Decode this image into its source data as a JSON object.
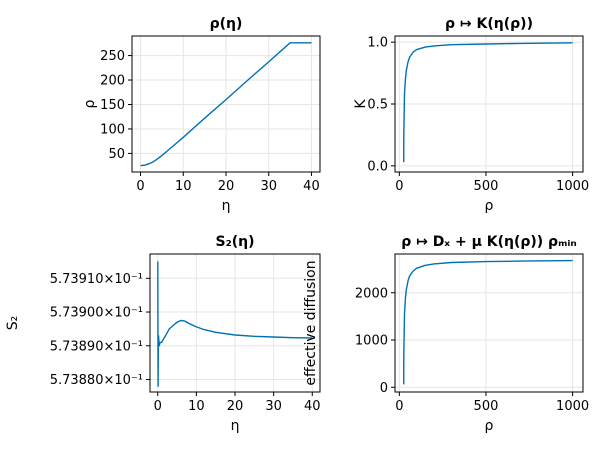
{
  "colors": {
    "series": "#0072b2",
    "grid": "#e6e6e6",
    "frame": "#000000"
  },
  "chart_data": [
    {
      "type": "line",
      "title": "ρ(η)",
      "xlabel": "η",
      "ylabel": "ρ",
      "xlim": [
        -2,
        42
      ],
      "ylim": [
        12,
        290
      ],
      "xticks": [
        {
          "value": 0,
          "label": "0"
        },
        {
          "value": 10,
          "label": "10"
        },
        {
          "value": 20,
          "label": "20"
        },
        {
          "value": 30,
          "label": "30"
        },
        {
          "value": 40,
          "label": "40"
        }
      ],
      "yticks": [
        {
          "value": 50,
          "label": "50"
        },
        {
          "value": 100,
          "label": "100"
        },
        {
          "value": 150,
          "label": "150"
        },
        {
          "value": 200,
          "label": "200"
        },
        {
          "value": 250,
          "label": "250"
        }
      ],
      "grid": true,
      "series": [
        {
          "x": [
            0,
            1,
            2,
            3,
            4,
            5,
            6,
            8,
            10,
            15,
            20,
            25,
            30,
            35,
            40
          ],
          "y": [
            25,
            26,
            29,
            33,
            39,
            46,
            53,
            68,
            83,
            122,
            160,
            199,
            237,
            276,
            276
          ]
        }
      ]
    },
    {
      "type": "line",
      "title": "ρ ↦ K(η(ρ))",
      "xlabel": "ρ",
      "ylabel": "K",
      "xlim": [
        -25,
        1060
      ],
      "ylim": [
        -0.05,
        1.05
      ],
      "xticks": [
        {
          "value": 0,
          "label": "0"
        },
        {
          "value": 500,
          "label": "500"
        },
        {
          "value": 1000,
          "label": "1000"
        }
      ],
      "yticks": [
        {
          "value": 0,
          "label": "0.0"
        },
        {
          "value": 0.5,
          "label": "0.5"
        },
        {
          "value": 1,
          "label": "1.0"
        }
      ],
      "grid": true,
      "series": [
        {
          "x": [
            25,
            26,
            28,
            30,
            35,
            40,
            50,
            60,
            80,
            100,
            150,
            200,
            300,
            500,
            700,
            1000
          ],
          "y": [
            0.03,
            0.25,
            0.45,
            0.58,
            0.7,
            0.77,
            0.84,
            0.88,
            0.92,
            0.94,
            0.96,
            0.97,
            0.98,
            0.985,
            0.99,
            0.995
          ]
        }
      ]
    },
    {
      "type": "line",
      "title": "S₂(η)",
      "xlabel": "η",
      "ylabel": "S₂",
      "xlim": [
        -2,
        42
      ],
      "ylim": [
        0.5738763,
        0.5739172
      ],
      "xticks": [
        {
          "value": 0,
          "label": "0"
        },
        {
          "value": 10,
          "label": "10"
        },
        {
          "value": 20,
          "label": "20"
        },
        {
          "value": 30,
          "label": "30"
        },
        {
          "value": 40,
          "label": "40"
        }
      ],
      "yticks": [
        {
          "value": 0.57388,
          "label": "5.73880×10⁻¹"
        },
        {
          "value": 0.57389,
          "label": "5.73890×10⁻¹"
        },
        {
          "value": 0.5739,
          "label": "5.73900×10⁻¹"
        },
        {
          "value": 0.57391,
          "label": "5.73910×10⁻¹"
        }
      ],
      "grid": true,
      "series": [
        {
          "x": [
            0.02,
            0.05,
            0.1,
            0.15,
            0.2,
            0.4,
            0.6,
            1,
            1.5,
            2,
            3,
            4,
            5,
            6,
            7,
            8,
            10,
            12,
            15,
            20,
            25,
            30,
            35,
            40
          ],
          "y": [
            0.573915,
            0.5739,
            0.573878,
            0.573889,
            0.573893,
            0.57389,
            0.573891,
            0.573891,
            0.573892,
            0.573893,
            0.573895,
            0.573896,
            0.573897,
            0.5738975,
            0.5738973,
            0.5738967,
            0.5738956,
            0.5738948,
            0.573894,
            0.5738932,
            0.5738928,
            0.5738926,
            0.5738924,
            0.5738923
          ]
        }
      ]
    },
    {
      "type": "line",
      "title": "ρ ↦ Dₓ + μ K(η(ρ)) ρₘᵢₙ",
      "xlabel": "ρ",
      "ylabel": "effective diffusion",
      "xlim": [
        -25,
        1060
      ],
      "ylim": [
        -100,
        2820
      ],
      "xticks": [
        {
          "value": 0,
          "label": "0"
        },
        {
          "value": 500,
          "label": "500"
        },
        {
          "value": 1000,
          "label": "1000"
        }
      ],
      "yticks": [
        {
          "value": 0,
          "label": "0"
        },
        {
          "value": 1000,
          "label": "1000"
        },
        {
          "value": 2000,
          "label": "2000"
        }
      ],
      "grid": true,
      "series": [
        {
          "x": [
            25,
            26,
            28,
            30,
            35,
            40,
            50,
            60,
            80,
            100,
            150,
            200,
            300,
            500,
            700,
            1000
          ],
          "y": [
            60,
            700,
            1200,
            1550,
            1880,
            2060,
            2250,
            2360,
            2460,
            2520,
            2580,
            2610,
            2640,
            2660,
            2670,
            2680
          ]
        }
      ]
    }
  ]
}
